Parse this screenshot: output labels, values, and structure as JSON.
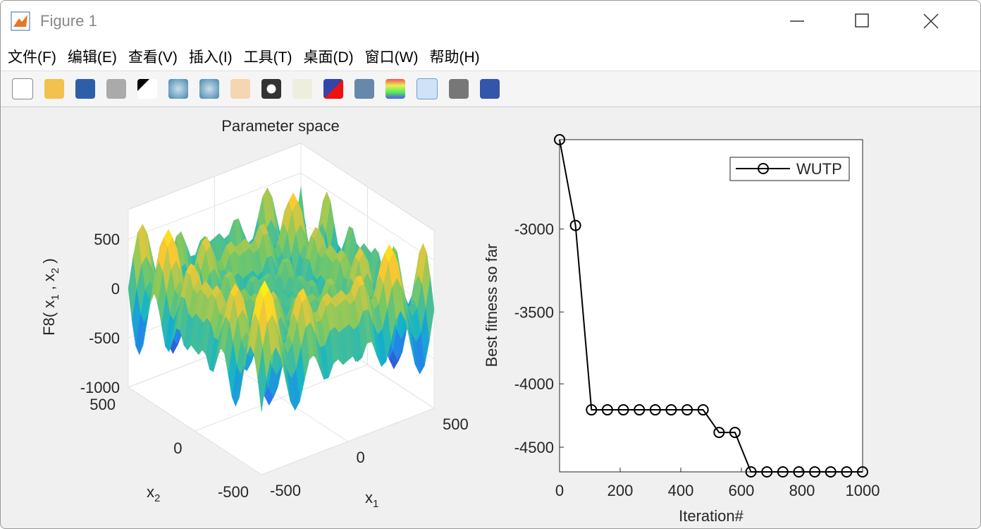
{
  "window": {
    "title": "Figure 1",
    "menu": [
      "文件(F)",
      "编辑(E)",
      "查看(V)",
      "插入(I)",
      "工具(T)",
      "桌面(D)",
      "窗口(W)",
      "帮助(H)"
    ]
  },
  "chart_data": [
    {
      "type": "surface",
      "title": "Parameter space",
      "xlabel": [
        "x",
        "1"
      ],
      "ylabel": [
        "x",
        "2"
      ],
      "zlabel": [
        "F8( x",
        "1",
        " , x",
        "2",
        " )"
      ],
      "xlim": [
        -500,
        500
      ],
      "ylim": [
        -500,
        500
      ],
      "zlim": [
        -1000,
        800
      ],
      "xticks": [
        -500,
        0,
        500
      ],
      "yticks": [
        -500,
        0,
        500
      ],
      "zticks": [
        -1000,
        -500,
        0,
        500
      ]
    },
    {
      "type": "line",
      "xlabel": "Iteration#",
      "ylabel": "Best fitness so far",
      "yscale": "log",
      "legend": "upper right",
      "x": [
        0,
        52.6,
        105.3,
        157.9,
        210.5,
        263.2,
        315.8,
        368.4,
        421.1,
        473.7,
        526.3,
        578.9,
        631.6,
        684.2,
        736.8,
        789.5,
        842.1,
        894.7,
        947.4,
        1000
      ],
      "series": [
        {
          "name": "WUTP",
          "color": "#000000",
          "values": [
            -2541,
            -2980,
            -4198,
            -4198,
            -4198,
            -4198,
            -4198,
            -4198,
            -4198,
            -4198,
            -4378,
            -4378,
            -4711,
            -4711,
            -4711,
            -4711,
            -4711,
            -4711,
            -4711,
            -4711
          ]
        }
      ],
      "xlim": [
        0,
        1000
      ],
      "ylim": [
        -4711,
        -2541
      ],
      "xticks": [
        0,
        200,
        400,
        600,
        800,
        1000
      ],
      "yticks": [
        -3000,
        -3500,
        -4000,
        -4500
      ]
    }
  ]
}
